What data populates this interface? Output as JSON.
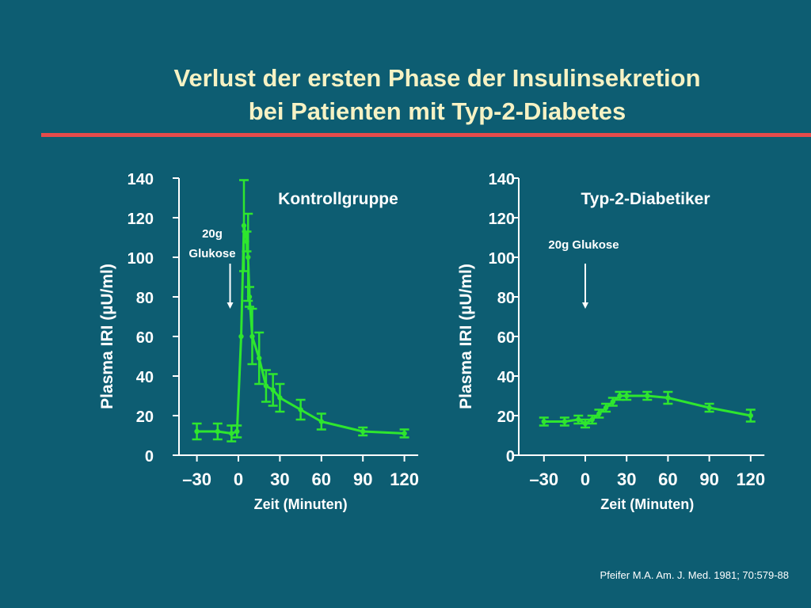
{
  "title": {
    "line1": "Verlust der ersten Phase der Insulinsekretion",
    "line2": "bei Patienten mit Typ-2-Diabetes"
  },
  "citation": "Pfeifer M.A. Am. J. Med. 1981; 70:579-88",
  "colors": {
    "background": "#0d5d72",
    "title": "#f6f2c4",
    "accent_rule": "#e54b4b",
    "series": "#2ee62e",
    "axis": "#ffffff"
  },
  "chart_data": [
    {
      "type": "line",
      "title": "Kontrollgruppe",
      "xlabel": "Zeit (Minuten)",
      "ylabel": "Plasma IRI (µU/ml)",
      "xlim": [
        -40,
        130
      ],
      "ylim": [
        0,
        140
      ],
      "xticks": [
        -30,
        0,
        30,
        60,
        90,
        120
      ],
      "xtick_labels": [
        "–30",
        "0",
        "30",
        "60",
        "90",
        "120"
      ],
      "yticks": [
        0,
        20,
        40,
        60,
        80,
        100,
        120,
        140
      ],
      "grid": false,
      "annotation": {
        "text": [
          "20g",
          "Glukose"
        ],
        "x": -6
      },
      "series": [
        {
          "points": [
            {
              "x": -30,
              "y": 12,
              "err": 4
            },
            {
              "x": -15,
              "y": 12,
              "err": 4
            },
            {
              "x": -5,
              "y": 11,
              "err": 4
            },
            {
              "x": -1,
              "y": 12,
              "err": 3
            },
            {
              "x": 2,
              "y": 60,
              "err": 0
            },
            {
              "x": 4,
              "y": 116,
              "err": 23
            },
            {
              "x": 6,
              "y": 108,
              "err": 5
            },
            {
              "x": 7,
              "y": 100,
              "err": 22
            },
            {
              "x": 8,
              "y": 80,
              "err": 5
            },
            {
              "x": 10,
              "y": 60,
              "err": 14
            },
            {
              "x": 15,
              "y": 49,
              "err": 13
            },
            {
              "x": 20,
              "y": 35,
              "err": 8
            },
            {
              "x": 25,
              "y": 33,
              "err": 8
            },
            {
              "x": 30,
              "y": 29,
              "err": 7
            },
            {
              "x": 45,
              "y": 23,
              "err": 5
            },
            {
              "x": 60,
              "y": 17,
              "err": 4
            },
            {
              "x": 90,
              "y": 12,
              "err": 2
            },
            {
              "x": 120,
              "y": 11,
              "err": 2
            }
          ]
        }
      ]
    },
    {
      "type": "line",
      "title": "Typ-2-Diabetiker",
      "xlabel": "Zeit (Minuten)",
      "ylabel": "Plasma IRI (µU/ml)",
      "xlim": [
        -40,
        130
      ],
      "ylim": [
        0,
        140
      ],
      "xticks": [
        -30,
        0,
        30,
        60,
        90,
        120
      ],
      "xtick_labels": [
        "–30",
        "0",
        "30",
        "60",
        "90",
        "120"
      ],
      "yticks": [
        0,
        20,
        40,
        60,
        80,
        100,
        120,
        140
      ],
      "grid": false,
      "annotation": {
        "text": [
          "20g Glukose"
        ],
        "x": 0
      },
      "series": [
        {
          "points": [
            {
              "x": -30,
              "y": 17,
              "err": 2
            },
            {
              "x": -15,
              "y": 17,
              "err": 2
            },
            {
              "x": -5,
              "y": 18,
              "err": 2
            },
            {
              "x": 0,
              "y": 16,
              "err": 2
            },
            {
              "x": 5,
              "y": 18,
              "err": 2
            },
            {
              "x": 10,
              "y": 21,
              "err": 2
            },
            {
              "x": 15,
              "y": 24,
              "err": 2
            },
            {
              "x": 20,
              "y": 27,
              "err": 2
            },
            {
              "x": 25,
              "y": 30,
              "err": 2
            },
            {
              "x": 30,
              "y": 30,
              "err": 2
            },
            {
              "x": 45,
              "y": 30,
              "err": 2
            },
            {
              "x": 60,
              "y": 29,
              "err": 3
            },
            {
              "x": 90,
              "y": 24,
              "err": 2
            },
            {
              "x": 120,
              "y": 20,
              "err": 3
            }
          ]
        }
      ]
    }
  ]
}
